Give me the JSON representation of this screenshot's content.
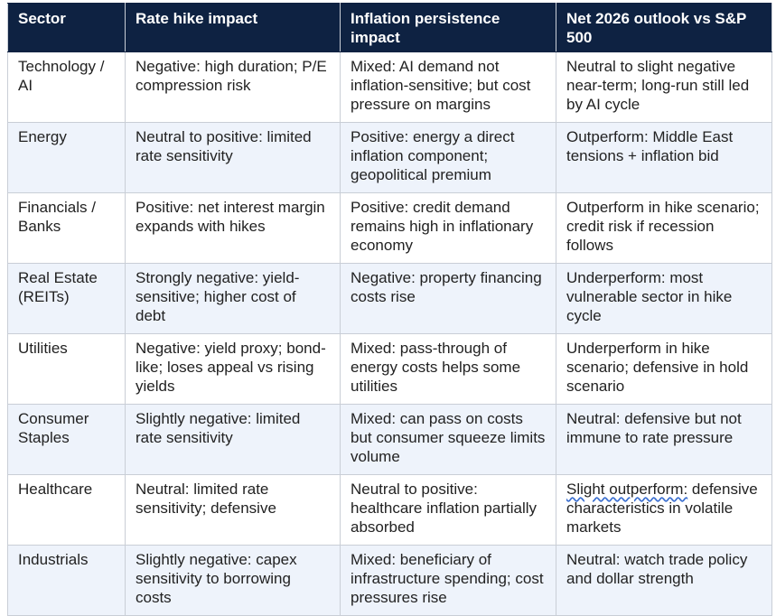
{
  "headers": {
    "sector": "Sector",
    "rate_hike": "Rate hike impact",
    "inflation": "Inflation persistence impact",
    "outlook": "Net 2026 outlook vs S&P 500"
  },
  "rows": [
    {
      "sector": "Technology / AI",
      "rate_hike": "Negative: high duration; P/E compression risk",
      "inflation": "Mixed: AI demand not inflation-sensitive; but cost pressure on margins",
      "outlook": "Neutral to slight negative near-term; long-run still led by AI cycle"
    },
    {
      "sector": "Energy",
      "rate_hike": "Neutral to positive: limited rate sensitivity",
      "inflation": "Positive: energy a direct inflation component; geopolitical premium",
      "outlook": "Outperform: Middle East tensions + inflation bid"
    },
    {
      "sector": "Financials / Banks",
      "rate_hike": "Positive: net interest margin expands with hikes",
      "inflation": "Positive: credit demand remains high in inflationary economy",
      "outlook": "Outperform in hike scenario; credit risk if recession follows"
    },
    {
      "sector": "Real Estate (REITs)",
      "rate_hike": "Strongly negative: yield-sensitive; higher cost of debt",
      "inflation": "Negative: property financing costs rise",
      "outlook": "Underperform: most vulnerable sector in hike cycle"
    },
    {
      "sector": "Utilities",
      "rate_hike": "Negative: yield proxy; bond-like; loses appeal vs rising yields",
      "inflation": "Mixed: pass-through of energy costs helps some utilities",
      "outlook": "Underperform in hike scenario; defensive in hold scenario"
    },
    {
      "sector": "Consumer Staples",
      "rate_hike": "Slightly negative: limited rate sensitivity",
      "inflation": "Mixed: can pass on costs but consumer squeeze limits volume",
      "outlook": "Neutral: defensive but not immune to rate pressure"
    },
    {
      "sector": "Healthcare",
      "rate_hike": "Neutral: limited rate sensitivity; defensive",
      "inflation": "Neutral to positive: healthcare inflation partially absorbed",
      "outlook_marked": "Slight outperform:",
      "outlook_rest": "defensive characteristics in volatile markets"
    },
    {
      "sector": "Industrials",
      "rate_hike": "Slightly negative: capex sensitivity to borrowing costs",
      "inflation": "Mixed: beneficiary of infrastructure spending; cost pressures rise",
      "outlook": "Neutral: watch trade policy and dollar strength"
    }
  ]
}
